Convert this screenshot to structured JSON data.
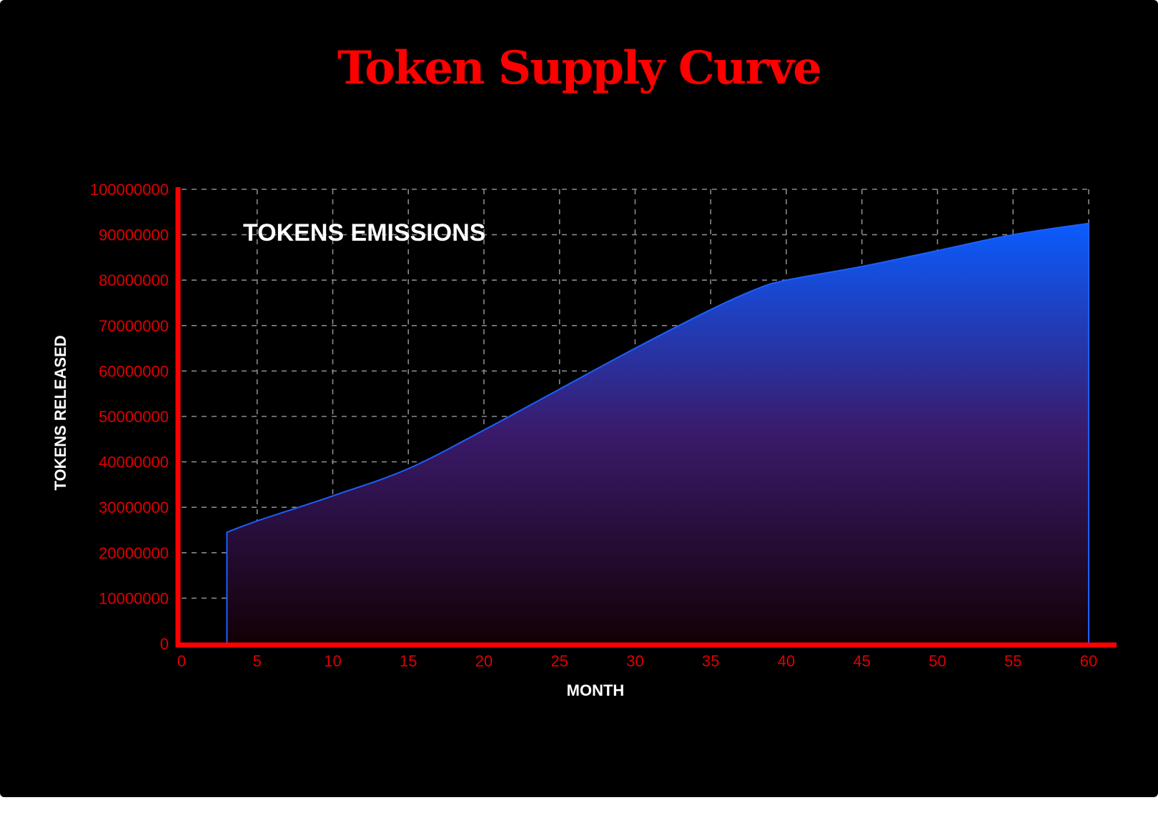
{
  "chart_data": {
    "type": "area",
    "title": "Token Supply Curve",
    "annotation": "TOKENS EMISSIONS",
    "xlabel": "MONTH",
    "ylabel": "TOKENS RELEASED",
    "xlim": [
      0,
      60
    ],
    "ylim": [
      0,
      100000000
    ],
    "x_ticks": [
      "0",
      "5",
      "10",
      "15",
      "20",
      "25",
      "30",
      "35",
      "40",
      "45",
      "50",
      "55",
      "60"
    ],
    "y_ticks": [
      "0",
      "10000000",
      "20000000",
      "30000000",
      "40000000",
      "50000000",
      "60000000",
      "70000000",
      "80000000",
      "90000000",
      "100000000"
    ],
    "grid": true,
    "series": [
      {
        "x": [
          3,
          5,
          10,
          15,
          20,
          25,
          30,
          35,
          38,
          40,
          45,
          50,
          55,
          60
        ],
        "values": [
          24500000,
          27000000,
          32500000,
          38500000,
          47000000,
          56000000,
          65000000,
          73500000,
          78000000,
          80000000,
          83000000,
          86500000,
          90000000,
          92500000
        ]
      }
    ],
    "colors": {
      "background": "#000000",
      "axis": "#ff0000",
      "tick_labels": "#e00000",
      "grid": "#8a8a8a",
      "line": "#1f5fff",
      "fill_top": "#0a5cff",
      "fill_bottom": "#120005"
    }
  }
}
